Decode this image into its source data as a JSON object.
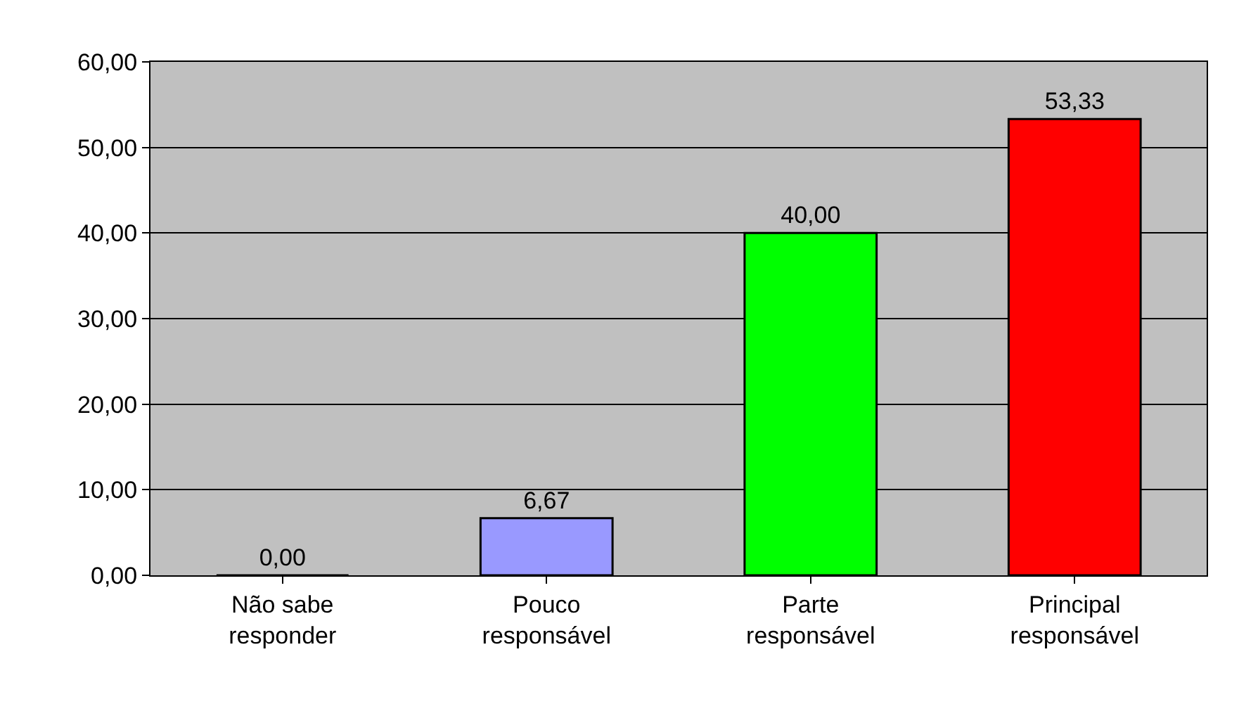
{
  "chart_data": {
    "type": "bar",
    "categories": [
      "Não sabe\nresponder",
      "Pouco\nresponsável",
      "Parte\nresponsável",
      "Principal\nresponsável"
    ],
    "values": [
      0,
      6.67,
      40,
      53.33
    ],
    "colors": [
      "#000000",
      "#9999ff",
      "#00ff00",
      "#ff0000"
    ],
    "value_labels": [
      "0,00",
      "6,67",
      "40,00",
      "53,33"
    ],
    "ylim": [
      0,
      60
    ],
    "yticks": [
      {
        "value": 0,
        "label": "0,00"
      },
      {
        "value": 10,
        "label": "10,00"
      },
      {
        "value": 20,
        "label": "20,00"
      },
      {
        "value": 30,
        "label": "30,00"
      },
      {
        "value": 40,
        "label": "40,00"
      },
      {
        "value": 50,
        "label": "50,00"
      },
      {
        "value": 60,
        "label": "60,00"
      }
    ],
    "grid": "y"
  }
}
